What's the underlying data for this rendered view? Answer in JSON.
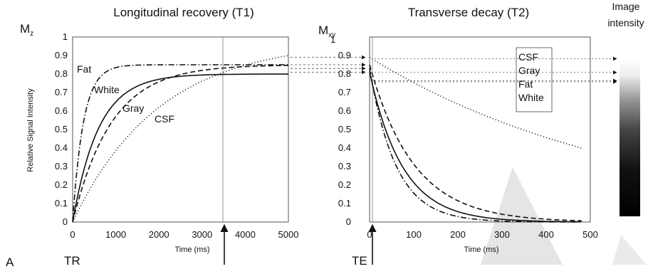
{
  "chart_data": [
    {
      "type": "line",
      "title": "Longitudinal recovery (T1)",
      "ylabel_symbol": "M",
      "ylabel_symbol_sub": "z",
      "ylabel": "Relative Signal Intensity",
      "xlabel": "Time (ms)",
      "xlim": [
        0,
        5000
      ],
      "ylim": [
        0,
        1
      ],
      "xticks": [
        "0",
        "1000",
        "2000",
        "3000",
        "4000",
        "5000"
      ],
      "yticks": [
        "0",
        "0.1",
        "0.2",
        "0.3",
        "0.4",
        "0.5",
        "0.6",
        "0.7",
        "0.8",
        "0.9",
        "1"
      ],
      "marker_label": "TR",
      "tr_ms": 3500,
      "series": [
        {
          "name": "Fat",
          "style": "dashdot",
          "m0": 0.85,
          "t1": 250
        },
        {
          "name": "White",
          "style": "solid",
          "m0": 0.8,
          "t1": 600
        },
        {
          "name": "Gray",
          "style": "dashed",
          "m0": 0.85,
          "t1": 900
        },
        {
          "name": "CSF",
          "style": "dotted",
          "m0": 0.98,
          "t1": 2000
        }
      ]
    },
    {
      "type": "line",
      "title": "Transverse decay (T2)",
      "ylabel_symbol": "M",
      "ylabel_symbol_sub": "xy",
      "xlabel": "Time (ms)",
      "xlim": [
        0,
        500
      ],
      "ylim": [
        0,
        1
      ],
      "xticks": [
        "0",
        "100",
        "200",
        "300",
        "400",
        "500"
      ],
      "yticks": [
        "0",
        "0.1",
        "0.2",
        "0.3",
        "0.4",
        "0.5",
        "0.6",
        "0.7",
        "0.8",
        "0.9"
      ],
      "ytop_label": "1",
      "marker_label": "TE",
      "te_ms": 5,
      "legend": [
        "CSF",
        "Gray",
        "Fat",
        "White"
      ],
      "series": [
        {
          "name": "CSF",
          "style": "dotted",
          "m0": 0.89,
          "t2": 600
        },
        {
          "name": "Gray",
          "style": "dashed",
          "m0": 0.85,
          "t2": 100
        },
        {
          "name": "White",
          "style": "solid",
          "m0": 0.81,
          "t2": 75
        },
        {
          "name": "Fat",
          "style": "dashdot",
          "m0": 0.83,
          "t2": 60
        }
      ]
    }
  ],
  "image_intensity_label": [
    "Image",
    "intensity"
  ],
  "panel_label": "A"
}
